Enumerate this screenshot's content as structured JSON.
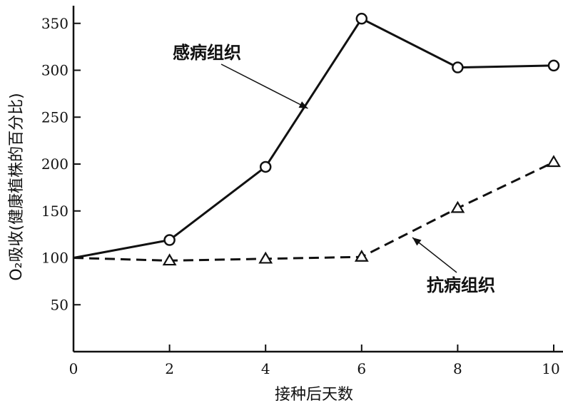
{
  "chart_data": {
    "type": "line",
    "title": "",
    "xlabel": "接种后天数",
    "ylabel": "O₂吸收(健康植株的百分比)",
    "xlim": [
      0,
      10
    ],
    "ylim": [
      0,
      360
    ],
    "x_ticks": [
      0,
      2,
      4,
      6,
      8,
      10
    ],
    "y_ticks": [
      50,
      100,
      150,
      200,
      250,
      300,
      350
    ],
    "grid": false,
    "series": [
      {
        "name": "感病组织",
        "style": "solid",
        "marker": "circle",
        "color": "#111111",
        "x": [
          0,
          2,
          4,
          6,
          8,
          10
        ],
        "y": [
          100,
          119,
          197,
          355,
          303,
          305
        ]
      },
      {
        "name": "抗病组织",
        "style": "dashed",
        "marker": "triangle",
        "color": "#111111",
        "x": [
          0,
          2,
          4,
          6,
          8,
          10
        ],
        "y": [
          100,
          97,
          99,
          101,
          153,
          202
        ]
      }
    ],
    "annotations": [
      {
        "text": "感病组织",
        "series": 0
      },
      {
        "text": "抗病组织",
        "series": 1
      }
    ]
  }
}
